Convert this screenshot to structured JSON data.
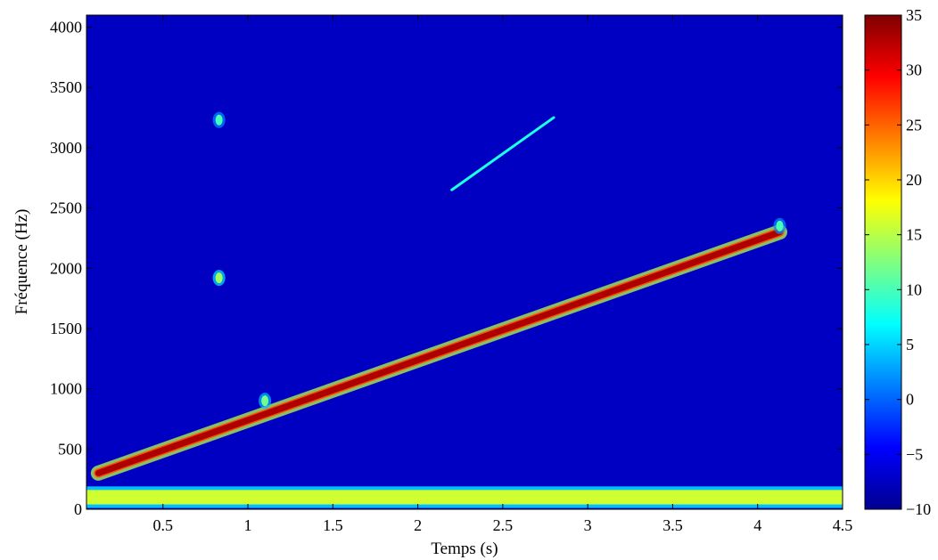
{
  "chart_data": {
    "type": "heatmap",
    "title": "",
    "xlabel": "Temps (s)",
    "ylabel": "Fréquence (Hz)",
    "xlim": [
      0.05,
      4.5
    ],
    "ylim": [
      0,
      4100
    ],
    "xticks": [
      0.5,
      1,
      1.5,
      2,
      2.5,
      3,
      3.5,
      4,
      4.5
    ],
    "xtick_labels": [
      "0.5",
      "1",
      "1.5",
      "2",
      "2.5",
      "3",
      "3.5",
      "4",
      "4.5"
    ],
    "yticks": [
      0,
      500,
      1000,
      1500,
      2000,
      2500,
      3000,
      3500,
      4000
    ],
    "ytick_labels": [
      "0",
      "500",
      "1000",
      "1500",
      "2000",
      "2500",
      "3000",
      "3500",
      "4000"
    ],
    "colorbar": {
      "min": -10,
      "max": 35,
      "ticks": [
        -10,
        -5,
        0,
        5,
        10,
        15,
        20,
        25,
        30,
        35
      ],
      "tick_labels": [
        "−10",
        "−5",
        "0",
        "5",
        "10",
        "15",
        "20",
        "25",
        "30",
        "35"
      ],
      "colormap": "jet"
    },
    "background_level_db": -7,
    "features": [
      {
        "kind": "chirp",
        "t": [
          0.12,
          4.13
        ],
        "f": [
          300,
          2300
        ],
        "level_db": 33
      },
      {
        "kind": "low-frequency band",
        "t": [
          0.05,
          4.5
        ],
        "f": [
          40,
          160
        ],
        "level_db": 16
      },
      {
        "kind": "harmonic streak",
        "t": [
          2.2,
          2.8
        ],
        "f": [
          2650,
          3250
        ],
        "level_db": 8
      },
      {
        "kind": "blob",
        "t": [
          0.83,
          0.83
        ],
        "f": [
          1920,
          1920
        ],
        "level_db": 14
      },
      {
        "kind": "blob",
        "t": [
          0.83,
          0.83
        ],
        "f": [
          3230,
          3230
        ],
        "level_db": 10
      },
      {
        "kind": "blob",
        "t": [
          1.1,
          1.1
        ],
        "f": [
          900,
          900
        ],
        "level_db": 12
      },
      {
        "kind": "blob",
        "t": [
          4.13,
          4.13
        ],
        "f": [
          2350,
          2350
        ],
        "level_db": 10
      }
    ]
  }
}
